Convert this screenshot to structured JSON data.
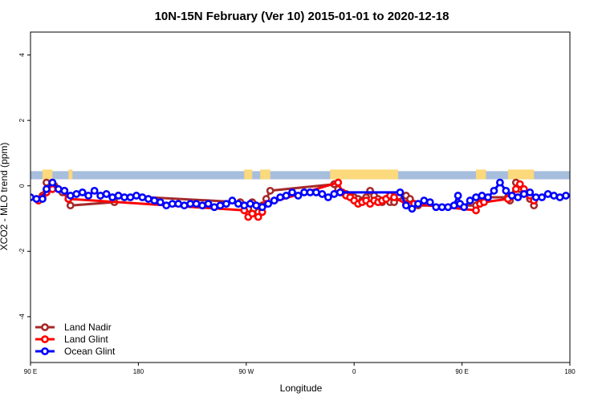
{
  "chart_data": {
    "type": "line",
    "title": "10N-15N February (Ver 10)   2015-01-01 to 2020-12-18",
    "xlabel": "Longitude",
    "ylabel": "XCO2 - MLO trend (ppm)",
    "xlim": [
      -90,
      180
    ],
    "ylim": [
      -5.4,
      4.7
    ],
    "x_ticks": [
      {
        "value": -90,
        "label": "90 E"
      },
      {
        "value": -36,
        "label": "180"
      },
      {
        "value": 18,
        "label": "90 W"
      },
      {
        "value": 72,
        "label": "0"
      },
      {
        "value": 126,
        "label": "90 E"
      },
      {
        "value": 180,
        "label": "180"
      }
    ],
    "y_ticks": [
      {
        "value": 4,
        "label": "4"
      },
      {
        "value": 2,
        "label": "2"
      },
      {
        "value": 0,
        "label": "0"
      },
      {
        "value": -2,
        "label": "-2"
      },
      {
        "value": -4,
        "label": "-4"
      }
    ],
    "land_band": {
      "y_range": [
        0.2,
        0.45
      ],
      "ocean_color": "#a7bedd",
      "land_color": "#fbd97c",
      "land_segments": [
        [
          -84,
          -79
        ],
        [
          -71,
          -69
        ],
        [
          17,
          21
        ],
        [
          25,
          30
        ],
        [
          60,
          94
        ],
        [
          133,
          138
        ],
        [
          149,
          162
        ]
      ]
    },
    "series": [
      {
        "name": "Land Nadir",
        "color": "#a52a2a",
        "x": [
          -85,
          -84,
          -82,
          -78,
          -74,
          -71,
          -70,
          -48,
          -46,
          15,
          17,
          19,
          21,
          24,
          26,
          28,
          30,
          62,
          64,
          66,
          68,
          70,
          72,
          74,
          76,
          78,
          80,
          82,
          84,
          86,
          88,
          90,
          92,
          98,
          100,
          102,
          104,
          133,
          135,
          137,
          139,
          149,
          150,
          151,
          153,
          155,
          157,
          160,
          162
        ],
        "y": [
          -0.4,
          -0.3,
          0.1,
          0.0,
          -0.2,
          -0.4,
          -0.6,
          -0.5,
          -0.3,
          -0.5,
          -0.6,
          -0.7,
          -0.5,
          -0.8,
          -0.6,
          -0.4,
          -0.15,
          0.05,
          -0.1,
          -0.2,
          -0.25,
          -0.3,
          -0.35,
          -0.4,
          -0.45,
          -0.35,
          -0.15,
          -0.3,
          -0.4,
          -0.5,
          -0.4,
          -0.5,
          -0.5,
          -0.3,
          -0.4,
          -0.55,
          -0.6,
          -0.6,
          -0.5,
          -0.4,
          -0.35,
          -0.35,
          -0.45,
          -0.3,
          0.1,
          -0.1,
          -0.2,
          -0.4,
          -0.6
        ]
      },
      {
        "name": "Land Glint",
        "color": "#ff0000",
        "x": [
          -86,
          -84,
          -82,
          -79,
          -73,
          -71,
          17,
          19,
          21,
          24,
          26,
          28,
          64,
          66,
          68,
          70,
          72,
          74,
          76,
          78,
          80,
          82,
          84,
          86,
          88,
          90,
          92,
          98,
          100,
          102,
          133,
          135,
          137,
          149,
          151,
          153,
          155,
          157,
          160,
          162
        ],
        "y": [
          -0.45,
          -0.35,
          -0.2,
          -0.1,
          -0.15,
          -0.4,
          -0.75,
          -0.95,
          -0.85,
          -0.95,
          -0.8,
          -0.55,
          0.1,
          -0.2,
          -0.3,
          -0.35,
          -0.45,
          -0.55,
          -0.5,
          -0.45,
          -0.55,
          -0.45,
          -0.5,
          -0.45,
          -0.4,
          -0.3,
          -0.35,
          -0.55,
          -0.6,
          -0.55,
          -0.75,
          -0.55,
          -0.5,
          -0.4,
          -0.3,
          -0.1,
          0.05,
          -0.1,
          -0.3,
          -0.45
        ]
      },
      {
        "name": "Ocean Glint",
        "color": "#0000ff",
        "x": [
          -90,
          -87,
          -84,
          -82,
          -79,
          -76,
          -73,
          -70,
          -67,
          -64,
          -61,
          -58,
          -55,
          -52,
          -49,
          -46,
          -43,
          -40,
          -37,
          -34,
          -31,
          -28,
          -25,
          -22,
          -19,
          -16,
          -13,
          -10,
          -7,
          -4,
          -1,
          2,
          5,
          8,
          11,
          14,
          17,
          20,
          23,
          26,
          29,
          32,
          35,
          38,
          41,
          44,
          47,
          50,
          53,
          56,
          59,
          62,
          65,
          95,
          98,
          101,
          104,
          107,
          110,
          113,
          116,
          119,
          122,
          124,
          125,
          127,
          130,
          133,
          136,
          139,
          142,
          145,
          148,
          151,
          154,
          157,
          160,
          163,
          166,
          169,
          172,
          175,
          178
        ],
        "y": [
          -0.35,
          -0.4,
          -0.4,
          -0.1,
          0.1,
          -0.1,
          -0.15,
          -0.3,
          -0.25,
          -0.2,
          -0.3,
          -0.15,
          -0.3,
          -0.25,
          -0.35,
          -0.3,
          -0.35,
          -0.35,
          -0.3,
          -0.35,
          -0.4,
          -0.45,
          -0.5,
          -0.6,
          -0.55,
          -0.55,
          -0.6,
          -0.55,
          -0.55,
          -0.6,
          -0.55,
          -0.65,
          -0.6,
          -0.55,
          -0.45,
          -0.55,
          -0.6,
          -0.55,
          -0.6,
          -0.65,
          -0.55,
          -0.45,
          -0.35,
          -0.3,
          -0.2,
          -0.3,
          -0.2,
          -0.2,
          -0.2,
          -0.25,
          -0.35,
          -0.25,
          -0.2,
          -0.2,
          -0.6,
          -0.7,
          -0.55,
          -0.45,
          -0.5,
          -0.65,
          -0.65,
          -0.65,
          -0.6,
          -0.3,
          -0.55,
          -0.65,
          -0.45,
          -0.35,
          -0.3,
          -0.35,
          -0.15,
          0.1,
          -0.15,
          -0.3,
          -0.35,
          -0.25,
          -0.2,
          -0.35,
          -0.35,
          -0.25,
          -0.3,
          -0.35,
          -0.3
        ]
      }
    ],
    "legend": {
      "position": "bottom-left",
      "entries": [
        "Land Nadir",
        "Land Glint",
        "Ocean Glint"
      ]
    }
  }
}
